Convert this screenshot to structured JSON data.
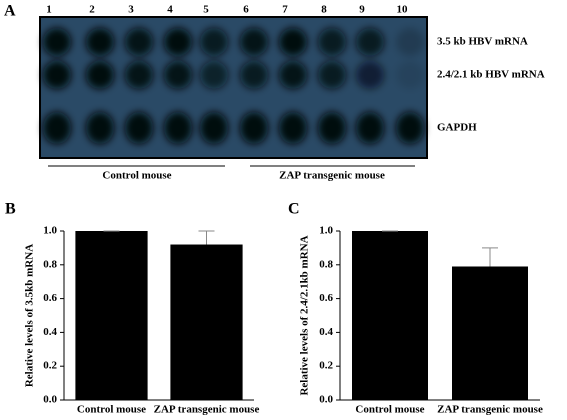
{
  "blot": {
    "panel_label": "A",
    "lanes": [
      "1",
      "2",
      "3",
      "4",
      "5",
      "6",
      "7",
      "8",
      "9",
      "10"
    ],
    "bands": [
      "3.5 kb HBV mRNA",
      "2.4/2.1 kb HBV mRNA",
      "GAPDH"
    ],
    "groups": [
      "Control mouse",
      "ZAP transgenic mouse"
    ]
  },
  "chart_data": [
    {
      "type": "bar",
      "panel_label": "B",
      "y_label": "Relative levels of 3.5kb mRNA",
      "categories": [
        "Control mouse",
        "ZAP transgenic mouse"
      ],
      "values": [
        1.0,
        0.92
      ],
      "errors": [
        0,
        0.08
      ],
      "color": "#000000",
      "ylim": [
        0,
        1
      ],
      "yticks": [
        {
          "value": 0,
          "label": "0.0"
        },
        0.2,
        0.4,
        0.6,
        0.8,
        {
          "value": 1,
          "label": "1.0"
        }
      ]
    },
    {
      "type": "bar",
      "panel_label": "C",
      "y_label": "Relative levels of 2.4/2.1kb mRNA",
      "categories": [
        "Control mouse",
        "ZAP transgenic mouse"
      ],
      "values": [
        1.0,
        0.79
      ],
      "errors": [
        0,
        0.11
      ],
      "color": "#000000",
      "ylim": [
        0,
        1
      ],
      "yticks": [
        {
          "value": 0,
          "label": "0.0"
        },
        0.2,
        0.4,
        0.6,
        0.8,
        {
          "value": 1,
          "label": "1.0"
        }
      ]
    }
  ]
}
